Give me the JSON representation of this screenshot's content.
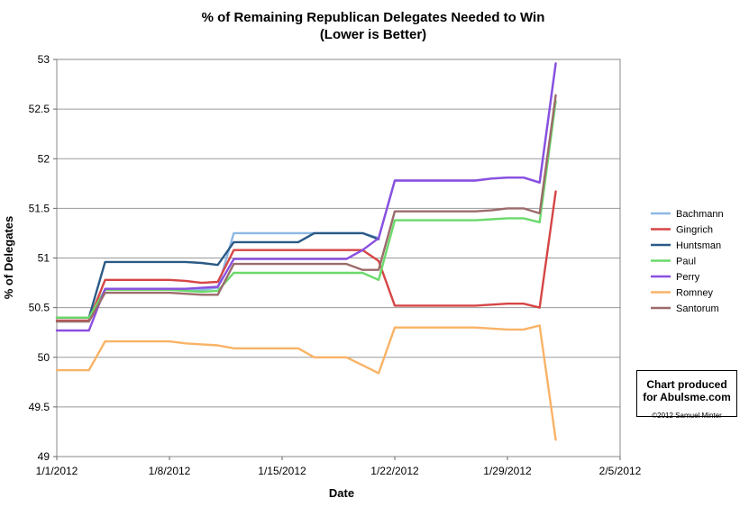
{
  "chart_data": {
    "type": "line",
    "title": "% of Remaining Republican Delegates Needed to Win",
    "subtitle": "(Lower is Better)",
    "xlabel": "Date",
    "ylabel": "% of Delegates",
    "x_ticks": [
      "1/1/2012",
      "1/8/2012",
      "1/15/2012",
      "1/22/2012",
      "1/29/2012",
      "2/5/2012"
    ],
    "y_ticks": [
      "49",
      "49.5",
      "50",
      "50.5",
      "51",
      "51.5",
      "52",
      "52.5",
      "53"
    ],
    "xlim": [
      "2012-01-01",
      "2012-02-05"
    ],
    "ylim": [
      49,
      53
    ],
    "legend_position": "right",
    "grid": "horizontal",
    "series": [
      {
        "name": "Bachmann",
        "color": "#8DB8E3",
        "x": [
          "2012-01-01",
          "2012-01-02",
          "2012-01-03",
          "2012-01-04",
          "2012-01-05",
          "2012-01-06",
          "2012-01-07",
          "2012-01-08",
          "2012-01-09",
          "2012-01-10",
          "2012-01-11",
          "2012-01-12",
          "2012-01-13",
          "2012-01-14",
          "2012-01-15",
          "2012-01-16",
          "2012-01-17",
          "2012-01-18",
          "2012-01-19",
          "2012-01-20",
          "2012-01-21",
          "2012-01-22",
          "2012-01-23",
          "2012-01-24",
          "2012-01-25",
          "2012-01-26",
          "2012-01-27",
          "2012-01-28",
          "2012-01-29",
          "2012-01-30",
          "2012-01-31",
          "2012-02-01"
        ],
        "y": [
          50.4,
          50.4,
          50.4,
          50.68,
          50.68,
          50.68,
          50.68,
          50.68,
          50.68,
          50.68,
          50.7,
          51.25,
          51.25,
          51.25,
          51.25,
          51.25,
          51.25,
          51.25,
          51.25,
          51.25,
          51.2,
          51.78,
          51.78,
          51.78,
          51.78,
          51.78,
          51.78,
          51.8,
          51.81,
          51.81,
          51.76,
          52.96
        ]
      },
      {
        "name": "Gingrich",
        "color": "#D64545",
        "x": [
          "2012-01-01",
          "2012-01-02",
          "2012-01-03",
          "2012-01-04",
          "2012-01-05",
          "2012-01-06",
          "2012-01-07",
          "2012-01-08",
          "2012-01-09",
          "2012-01-10",
          "2012-01-11",
          "2012-01-12",
          "2012-01-13",
          "2012-01-14",
          "2012-01-15",
          "2012-01-16",
          "2012-01-17",
          "2012-01-18",
          "2012-01-19",
          "2012-01-20",
          "2012-01-21",
          "2012-01-22",
          "2012-01-23",
          "2012-01-24",
          "2012-01-25",
          "2012-01-26",
          "2012-01-27",
          "2012-01-28",
          "2012-01-29",
          "2012-01-30",
          "2012-01-31",
          "2012-02-01"
        ],
        "y": [
          50.37,
          50.37,
          50.37,
          50.78,
          50.78,
          50.78,
          50.78,
          50.78,
          50.77,
          50.75,
          50.76,
          51.08,
          51.08,
          51.08,
          51.08,
          51.08,
          51.08,
          51.08,
          51.08,
          51.08,
          50.97,
          50.52,
          50.52,
          50.52,
          50.52,
          50.52,
          50.52,
          50.53,
          50.54,
          50.54,
          50.5,
          51.67
        ]
      },
      {
        "name": "Huntsman",
        "color": "#2A5A86",
        "x": [
          "2012-01-01",
          "2012-01-02",
          "2012-01-03",
          "2012-01-04",
          "2012-01-05",
          "2012-01-06",
          "2012-01-07",
          "2012-01-08",
          "2012-01-09",
          "2012-01-10",
          "2012-01-11",
          "2012-01-12",
          "2012-01-13",
          "2012-01-14",
          "2012-01-15",
          "2012-01-16",
          "2012-01-17",
          "2012-01-18",
          "2012-01-19",
          "2012-01-20",
          "2012-01-21"
        ],
        "y": [
          50.4,
          50.4,
          50.4,
          50.96,
          50.96,
          50.96,
          50.96,
          50.96,
          50.96,
          50.95,
          50.93,
          51.16,
          51.16,
          51.16,
          51.16,
          51.16,
          51.25,
          51.25,
          51.25,
          51.25,
          51.19
        ]
      },
      {
        "name": "Paul",
        "color": "#6BD96B",
        "x": [
          "2012-01-01",
          "2012-01-02",
          "2012-01-03",
          "2012-01-04",
          "2012-01-05",
          "2012-01-06",
          "2012-01-07",
          "2012-01-08",
          "2012-01-09",
          "2012-01-10",
          "2012-01-11",
          "2012-01-12",
          "2012-01-13",
          "2012-01-14",
          "2012-01-15",
          "2012-01-16",
          "2012-01-17",
          "2012-01-18",
          "2012-01-19",
          "2012-01-20",
          "2012-01-21",
          "2012-01-22",
          "2012-01-23",
          "2012-01-24",
          "2012-01-25",
          "2012-01-26",
          "2012-01-27",
          "2012-01-28",
          "2012-01-29",
          "2012-01-30",
          "2012-01-31",
          "2012-02-01"
        ],
        "y": [
          50.4,
          50.4,
          50.4,
          50.68,
          50.68,
          50.68,
          50.68,
          50.68,
          50.67,
          50.66,
          50.67,
          50.85,
          50.85,
          50.85,
          50.85,
          50.85,
          50.85,
          50.85,
          50.85,
          50.85,
          50.78,
          51.38,
          51.38,
          51.38,
          51.38,
          51.38,
          51.38,
          51.39,
          51.4,
          51.4,
          51.36,
          52.58
        ]
      },
      {
        "name": "Perry",
        "color": "#8A4FE0",
        "x": [
          "2012-01-01",
          "2012-01-02",
          "2012-01-03",
          "2012-01-04",
          "2012-01-05",
          "2012-01-06",
          "2012-01-07",
          "2012-01-08",
          "2012-01-09",
          "2012-01-10",
          "2012-01-11",
          "2012-01-12",
          "2012-01-13",
          "2012-01-14",
          "2012-01-15",
          "2012-01-16",
          "2012-01-17",
          "2012-01-18",
          "2012-01-19",
          "2012-01-20",
          "2012-01-21",
          "2012-01-22",
          "2012-01-23",
          "2012-01-24",
          "2012-01-25",
          "2012-01-26",
          "2012-01-27",
          "2012-01-28",
          "2012-01-29",
          "2012-01-30",
          "2012-01-31",
          "2012-02-01"
        ],
        "y": [
          50.27,
          50.27,
          50.27,
          50.69,
          50.69,
          50.69,
          50.69,
          50.69,
          50.69,
          50.7,
          50.71,
          50.99,
          50.99,
          50.99,
          50.99,
          50.99,
          50.99,
          50.99,
          50.99,
          51.08,
          51.2,
          51.78,
          51.78,
          51.78,
          51.78,
          51.78,
          51.78,
          51.8,
          51.81,
          51.81,
          51.76,
          52.96
        ]
      },
      {
        "name": "Romney",
        "color": "#F9B366",
        "x": [
          "2012-01-01",
          "2012-01-02",
          "2012-01-03",
          "2012-01-04",
          "2012-01-05",
          "2012-01-06",
          "2012-01-07",
          "2012-01-08",
          "2012-01-09",
          "2012-01-10",
          "2012-01-11",
          "2012-01-12",
          "2012-01-13",
          "2012-01-14",
          "2012-01-15",
          "2012-01-16",
          "2012-01-17",
          "2012-01-18",
          "2012-01-19",
          "2012-01-20",
          "2012-01-21",
          "2012-01-22",
          "2012-01-23",
          "2012-01-24",
          "2012-01-25",
          "2012-01-26",
          "2012-01-27",
          "2012-01-28",
          "2012-01-29",
          "2012-01-30",
          "2012-01-31",
          "2012-02-01"
        ],
        "y": [
          49.87,
          49.87,
          49.87,
          50.16,
          50.16,
          50.16,
          50.16,
          50.16,
          50.14,
          50.13,
          50.12,
          50.09,
          50.09,
          50.09,
          50.09,
          50.09,
          50.0,
          50.0,
          50.0,
          49.92,
          49.84,
          50.3,
          50.3,
          50.3,
          50.3,
          50.3,
          50.3,
          50.29,
          50.28,
          50.28,
          50.32,
          49.17
        ]
      },
      {
        "name": "Santorum",
        "color": "#9C6B6B",
        "x": [
          "2012-01-01",
          "2012-01-02",
          "2012-01-03",
          "2012-01-04",
          "2012-01-05",
          "2012-01-06",
          "2012-01-07",
          "2012-01-08",
          "2012-01-09",
          "2012-01-10",
          "2012-01-11",
          "2012-01-12",
          "2012-01-13",
          "2012-01-14",
          "2012-01-15",
          "2012-01-16",
          "2012-01-17",
          "2012-01-18",
          "2012-01-19",
          "2012-01-20",
          "2012-01-21",
          "2012-01-22",
          "2012-01-23",
          "2012-01-24",
          "2012-01-25",
          "2012-01-26",
          "2012-01-27",
          "2012-01-28",
          "2012-01-29",
          "2012-01-30",
          "2012-01-31",
          "2012-02-01"
        ],
        "y": [
          50.36,
          50.36,
          50.36,
          50.65,
          50.65,
          50.65,
          50.65,
          50.65,
          50.64,
          50.63,
          50.63,
          50.94,
          50.94,
          50.94,
          50.94,
          50.94,
          50.94,
          50.94,
          50.94,
          50.88,
          50.88,
          51.47,
          51.47,
          51.47,
          51.47,
          51.47,
          51.47,
          51.48,
          51.5,
          51.5,
          51.45,
          52.64
        ]
      }
    ]
  },
  "credit": {
    "line1": "Chart produced",
    "line2": "for Abulsme.com",
    "copyright": "©2012 Samuel Minter"
  }
}
